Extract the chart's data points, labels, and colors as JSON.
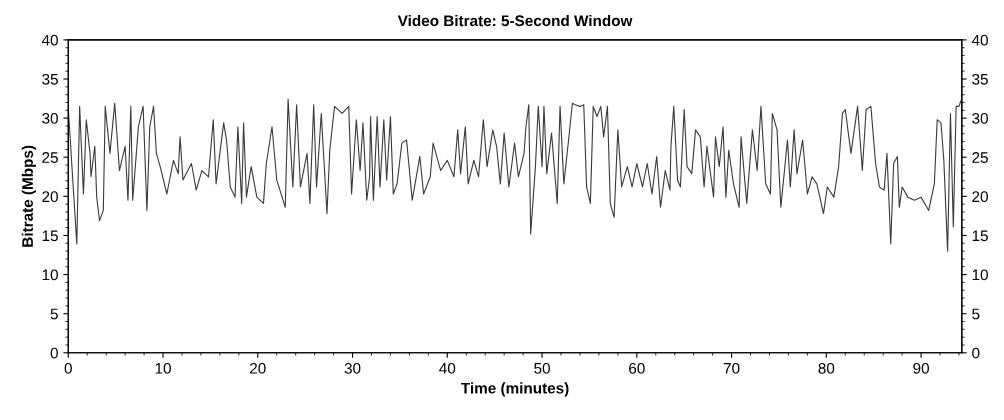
{
  "chart_data": {
    "type": "line",
    "title": "Video Bitrate: 5-Second Window",
    "xlabel": "Time (minutes)",
    "ylabel": "Bitrate (Mbps)",
    "xlim": [
      0,
      94.3
    ],
    "xticks": [
      0,
      10,
      20,
      30,
      40,
      50,
      60,
      70,
      80,
      90
    ],
    "ylim": [
      0,
      40
    ],
    "yticks": [
      0,
      5,
      10,
      15,
      20,
      25,
      30,
      35,
      40
    ],
    "y2lim": [
      0,
      40
    ],
    "y2ticks": [
      0,
      5,
      10,
      15,
      20,
      25,
      30,
      35,
      40
    ],
    "grid": false,
    "marker": "none",
    "line_style": "solid",
    "series": [
      {
        "color": "#3a3a3a",
        "x": [
          0.0,
          0.9,
          1.2,
          1.6,
          1.9,
          2.3,
          2.4,
          2.8,
          3.0,
          3.3,
          3.7,
          3.9,
          4.4,
          4.9,
          5.4,
          6.0,
          6.3,
          6.6,
          6.8,
          7.4,
          7.9,
          8.3,
          8.6,
          9.0,
          9.3,
          9.7,
          10.4,
          11.1,
          11.6,
          11.8,
          12.1,
          13.0,
          13.5,
          14.1,
          14.8,
          15.3,
          15.6,
          16.4,
          16.7,
          17.1,
          17.6,
          17.9,
          18.3,
          18.5,
          18.8,
          19.3,
          19.9,
          20.6,
          20.9,
          21.5,
          22.0,
          22.9,
          23.2,
          23.7,
          24.1,
          24.5,
          25.2,
          25.5,
          25.9,
          26.2,
          26.7,
          27.3,
          27.6,
          28.1,
          28.9,
          29.6,
          29.9,
          30.4,
          30.8,
          31.1,
          31.5,
          31.8,
          31.9,
          32.2,
          32.6,
          32.9,
          33.3,
          33.6,
          34.0,
          34.3,
          34.7,
          35.2,
          35.7,
          36.3,
          36.6,
          37.1,
          37.5,
          38.2,
          38.5,
          39.3,
          40.0,
          40.7,
          41.1,
          41.4,
          41.9,
          42.2,
          42.8,
          43.3,
          43.8,
          44.2,
          44.8,
          45.2,
          45.6,
          46.0,
          46.5,
          47.1,
          47.5,
          48.1,
          48.3,
          48.6,
          48.8,
          49.3,
          49.6,
          50.0,
          50.2,
          50.5,
          51.0,
          51.6,
          51.9,
          52.3,
          52.8,
          53.2,
          53.5,
          54.0,
          54.4,
          54.7,
          55.1,
          55.4,
          55.8,
          56.2,
          56.5,
          56.9,
          57.2,
          57.6,
          58.0,
          58.4,
          59.0,
          59.5,
          60.0,
          60.6,
          61.1,
          61.6,
          62.1,
          62.5,
          63.0,
          63.5,
          63.6,
          63.9,
          64.3,
          64.6,
          65.0,
          65.3,
          65.8,
          66.2,
          66.7,
          67.1,
          67.4,
          68.1,
          68.3,
          68.7,
          69.1,
          69.4,
          69.7,
          70.2,
          70.8,
          71.0,
          71.6,
          72.2,
          72.7,
          73.1,
          73.6,
          74.1,
          74.3,
          74.8,
          75.2,
          75.9,
          76.2,
          76.6,
          76.9,
          77.5,
          78.0,
          78.5,
          79.0,
          79.7,
          80.1,
          80.8,
          81.3,
          81.7,
          82.0,
          82.6,
          83.3,
          83.8,
          84.2,
          84.7,
          85.2,
          85.6,
          86.1,
          86.4,
          86.8,
          87.1,
          87.5,
          87.7,
          88.0,
          88.6,
          89.3,
          90.0,
          90.8,
          91.4,
          91.7,
          92.1,
          92.4,
          92.8,
          93.1,
          93.4,
          93.7,
          94.0,
          94.2
        ],
        "values": [
          31.3,
          13.9,
          31.5,
          20.3,
          29.8,
          25.5,
          22.5,
          26.4,
          19.9,
          16.9,
          18.2,
          31.5,
          25.5,
          31.9,
          23.3,
          26.4,
          19.5,
          31.5,
          19.5,
          28.9,
          31.5,
          18.2,
          28.9,
          31.5,
          25.5,
          23.8,
          20.3,
          24.6,
          22.9,
          27.6,
          22.1,
          24.2,
          20.8,
          23.3,
          22.5,
          29.8,
          21.6,
          29.4,
          27.2,
          21.2,
          19.9,
          28.9,
          19.1,
          29.4,
          19.9,
          23.8,
          19.9,
          19.1,
          24.2,
          28.9,
          22.1,
          18.6,
          32.4,
          21.2,
          31.7,
          21.2,
          25.5,
          19.1,
          31.7,
          21.2,
          30.6,
          17.8,
          25.9,
          31.5,
          30.6,
          31.5,
          20.3,
          29.8,
          23.3,
          29.4,
          19.5,
          22.5,
          30.2,
          19.5,
          30.2,
          21.2,
          29.8,
          22.1,
          30.2,
          20.3,
          21.6,
          26.8,
          27.2,
          19.5,
          21.6,
          25.1,
          20.3,
          22.5,
          26.8,
          23.3,
          24.6,
          22.5,
          28.5,
          22.9,
          28.9,
          21.6,
          24.6,
          22.5,
          29.8,
          23.8,
          28.5,
          26.4,
          21.6,
          28.1,
          21.2,
          26.8,
          22.5,
          25.5,
          28.9,
          31.7,
          15.2,
          23.8,
          31.5,
          23.8,
          31.5,
          22.9,
          28.1,
          19.1,
          31.5,
          21.6,
          27.2,
          31.9,
          31.7,
          31.5,
          31.7,
          21.2,
          19.1,
          31.5,
          30.2,
          31.5,
          27.6,
          31.5,
          19.1,
          17.3,
          28.5,
          21.2,
          23.8,
          21.2,
          24.2,
          21.2,
          24.2,
          20.3,
          25.1,
          18.6,
          23.3,
          20.8,
          26.4,
          31.5,
          22.1,
          21.2,
          31.1,
          23.8,
          22.9,
          28.5,
          27.6,
          21.2,
          26.4,
          19.9,
          27.6,
          23.8,
          28.9,
          19.9,
          25.9,
          21.6,
          18.6,
          27.6,
          19.1,
          28.5,
          23.3,
          31.5,
          21.6,
          20.3,
          30.6,
          28.5,
          18.6,
          27.2,
          21.2,
          28.5,
          22.9,
          27.2,
          20.3,
          22.5,
          21.6,
          17.8,
          21.2,
          19.9,
          23.8,
          30.6,
          31.1,
          25.5,
          31.5,
          23.3,
          31.1,
          31.5,
          24.2,
          21.2,
          20.8,
          25.5,
          13.9,
          24.2,
          25.1,
          18.6,
          21.2,
          19.9,
          19.5,
          19.9,
          18.2,
          21.6,
          29.8,
          29.4,
          24.6,
          13.0,
          30.6,
          16.1,
          31.5,
          31.5,
          32.2
        ]
      }
    ]
  }
}
